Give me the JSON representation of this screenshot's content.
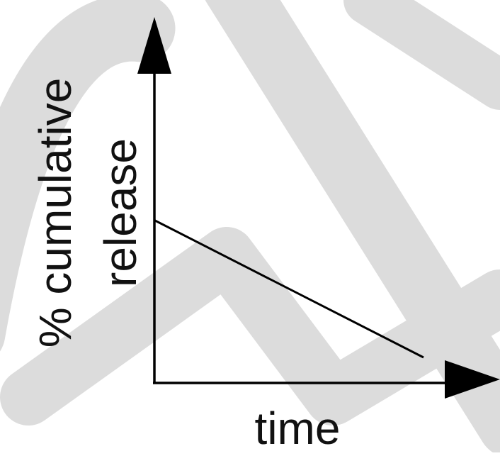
{
  "chart_data": {
    "type": "line",
    "title": "",
    "xlabel": "time",
    "ylabel_lines": [
      "% cumulative",
      "release"
    ],
    "x_ticks": [],
    "y_ticks": [],
    "grid": false,
    "legend": "none",
    "xlim": [
      0,
      1
    ],
    "ylim": [
      0,
      1
    ],
    "series": [
      {
        "x": [
          0,
          1
        ],
        "y": [
          0.51,
          0.08
        ]
      }
    ]
  },
  "colors": {
    "axis": "#000000",
    "line": "#000000",
    "watermark": "#dcdcdc"
  }
}
